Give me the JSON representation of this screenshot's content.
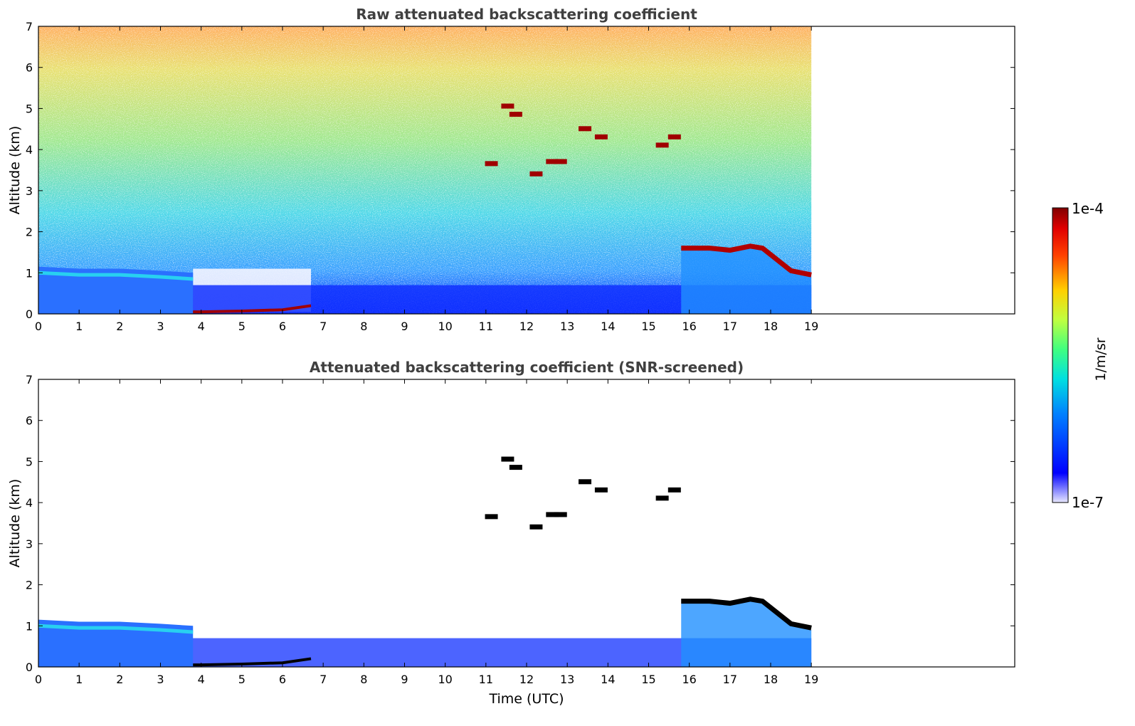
{
  "figure": {
    "xlabel": "Time (UTC)",
    "colorbar": {
      "label": "1/m/sr",
      "max_label": "1e-4",
      "min_label": "1e-7",
      "scale": "log",
      "range": [
        1e-07,
        0.0001
      ],
      "colormap": "jet"
    }
  },
  "chart_data": [
    {
      "type": "heatmap",
      "title": "Raw attenuated backscattering coefficient",
      "xlabel": "",
      "ylabel": "Altitude (km)",
      "xlim": [
        0,
        24
      ],
      "ylim": [
        0,
        7
      ],
      "xticks": [
        0,
        1,
        2,
        3,
        4,
        5,
        6,
        7,
        8,
        9,
        10,
        11,
        12,
        13,
        14,
        15,
        16,
        17,
        18,
        19
      ],
      "yticks": [
        0,
        1,
        2,
        3,
        4,
        5,
        6,
        7
      ],
      "data_end_time": 19,
      "features": [
        {
          "kind": "boundary_layer",
          "t": [
            0,
            1,
            2,
            3,
            3.8
          ],
          "z_top": [
            1.15,
            1.1,
            1.1,
            1.05,
            1.0
          ]
        },
        {
          "kind": "surface_layer",
          "t": [
            3.8,
            4,
            5,
            6,
            6.7
          ],
          "z": [
            0.05,
            0.05,
            0.07,
            0.1,
            0.2
          ]
        },
        {
          "kind": "low_cloud",
          "t": [
            15.8,
            16.5,
            17,
            17.5,
            17.8,
            18.5,
            19
          ],
          "z": [
            1.6,
            1.6,
            1.55,
            1.65,
            1.6,
            1.05,
            0.95
          ]
        },
        {
          "kind": "mid_cloud",
          "segments": [
            [
              11.1,
              3.65
            ],
            [
              11.5,
              5.05
            ],
            [
              11.7,
              4.85
            ],
            [
              12.2,
              3.4
            ],
            [
              12.6,
              3.7
            ],
            [
              12.8,
              3.7
            ],
            [
              13.4,
              4.5
            ],
            [
              13.8,
              4.3
            ],
            [
              15.3,
              4.1
            ],
            [
              15.6,
              4.3
            ]
          ]
        }
      ]
    },
    {
      "type": "heatmap",
      "title": "Attenuated backscattering coefficient (SNR-screened)",
      "xlabel": "Time (UTC)",
      "ylabel": "Altitude (km)",
      "xlim": [
        0,
        24
      ],
      "ylim": [
        0,
        7
      ],
      "xticks": [
        0,
        1,
        2,
        3,
        4,
        5,
        6,
        7,
        8,
        9,
        10,
        11,
        12,
        13,
        14,
        15,
        16,
        17,
        18,
        19
      ],
      "yticks": [
        0,
        1,
        2,
        3,
        4,
        5,
        6,
        7
      ],
      "data_end_time": 19,
      "features": [
        {
          "kind": "boundary_layer",
          "t": [
            0,
            1,
            2,
            3,
            3.8
          ],
          "z_top": [
            1.15,
            1.1,
            1.1,
            1.05,
            1.0
          ]
        },
        {
          "kind": "surface_layer",
          "t": [
            3.8,
            4,
            5,
            6,
            6.7
          ],
          "z": [
            0.05,
            0.05,
            0.07,
            0.1,
            0.2
          ]
        },
        {
          "kind": "low_cloud",
          "t": [
            15.8,
            16.5,
            17,
            17.5,
            17.8,
            18.5,
            19
          ],
          "z": [
            1.6,
            1.6,
            1.55,
            1.65,
            1.6,
            1.05,
            0.95
          ]
        },
        {
          "kind": "mid_cloud",
          "segments": [
            [
              11.1,
              3.65
            ],
            [
              11.5,
              5.05
            ],
            [
              11.7,
              4.85
            ],
            [
              12.2,
              3.4
            ],
            [
              12.6,
              3.7
            ],
            [
              12.8,
              3.7
            ],
            [
              13.4,
              4.5
            ],
            [
              13.8,
              4.3
            ],
            [
              15.3,
              4.1
            ],
            [
              15.6,
              4.3
            ]
          ]
        }
      ]
    }
  ]
}
